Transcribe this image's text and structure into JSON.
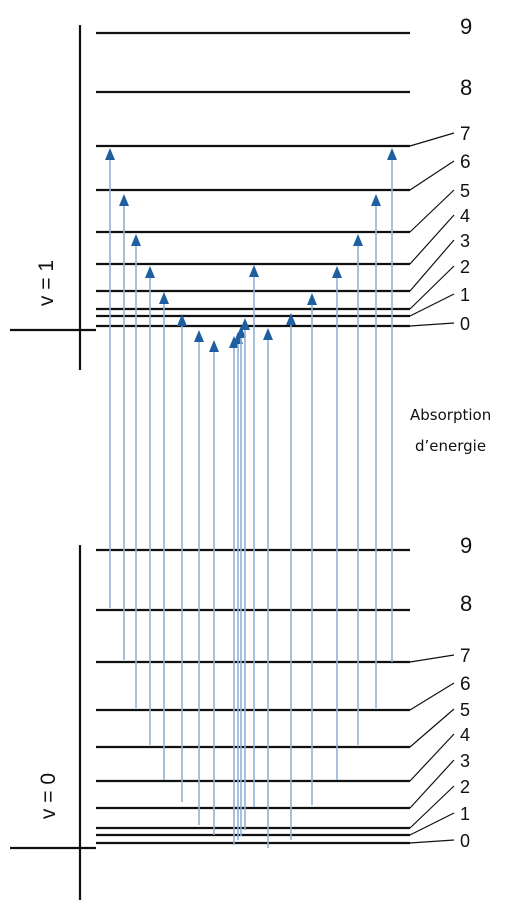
{
  "upper_band": {
    "label": "v = 1",
    "levels": [
      "0",
      "1",
      "2",
      "3",
      "4",
      "5",
      "6",
      "7",
      "8",
      "9"
    ]
  },
  "lower_band": {
    "label": "v = 0",
    "levels": [
      "0",
      "1",
      "2",
      "3",
      "4",
      "5",
      "6",
      "7",
      "8",
      "9"
    ]
  },
  "caption": {
    "line1": "Absorption",
    "line2": "d’energie"
  },
  "colors": {
    "arrow_head": "#1f5f9f",
    "arrow_shaft": "#8fb2d4",
    "level_line": "#111111"
  }
}
